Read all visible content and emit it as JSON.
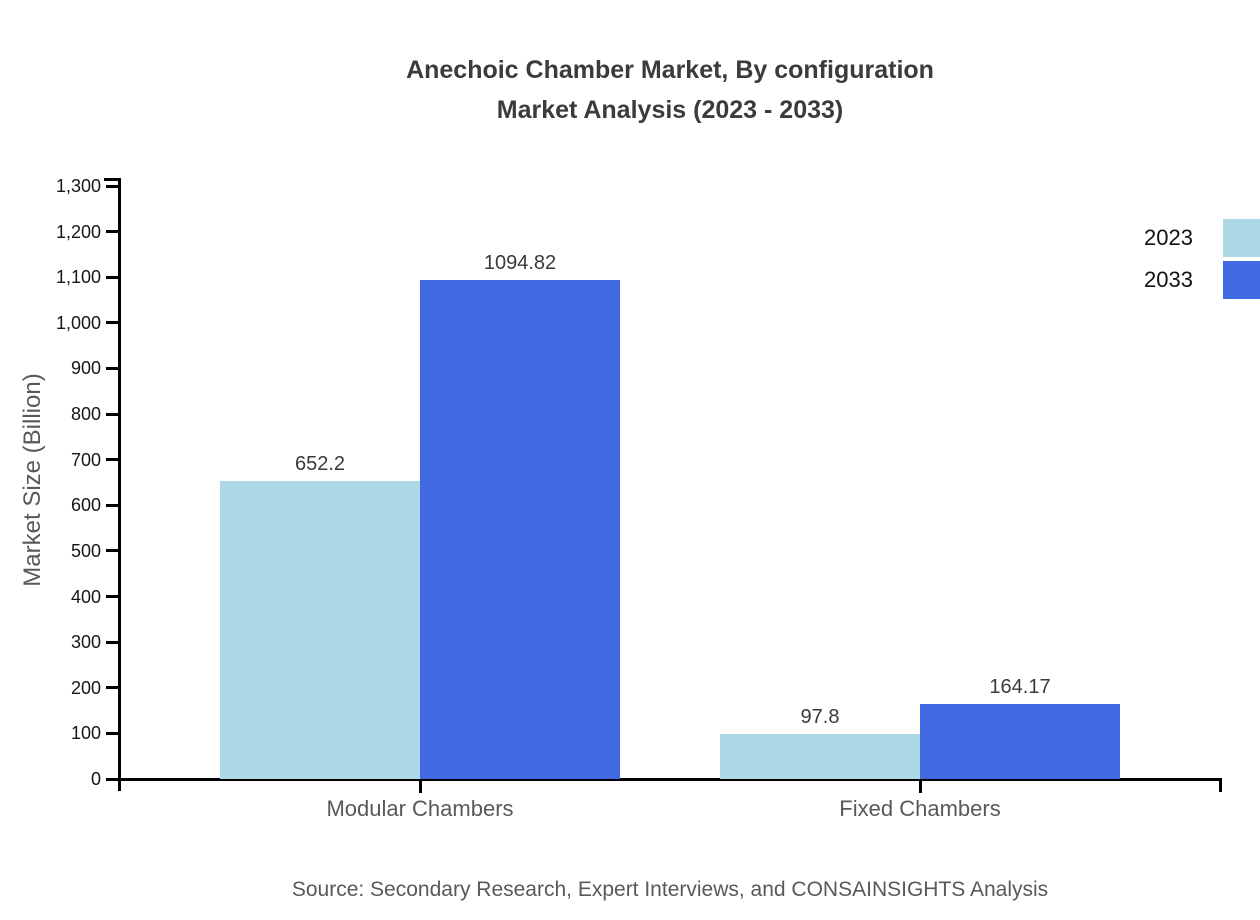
{
  "chart": {
    "title_line1": "Anechoic Chamber Market, By configuration",
    "title_line2": "Market Analysis (2023 - 2033)",
    "ylabel": "Market Size (Billion)",
    "source": "Source: Secondary Research, Expert Interviews, and CONSAINSIGHTS Analysis"
  },
  "chart_data": {
    "type": "bar",
    "title": "Anechoic Chamber Market, By configuration Market Analysis (2023 - 2033)",
    "categories": [
      "Modular Chambers",
      "Fixed Chambers"
    ],
    "series": [
      {
        "name": "2023",
        "color": "#ADD8E6",
        "values": [
          652.2,
          97.8
        ],
        "labels": [
          "652.2",
          "97.8"
        ]
      },
      {
        "name": "2033",
        "color": "#4169E1",
        "values": [
          1094.82,
          164.17
        ],
        "labels": [
          "1094.82",
          "164.17"
        ]
      }
    ],
    "xlabel": "",
    "ylabel": "Market Size (Billion)",
    "ylim": [
      0,
      1300
    ],
    "ytick_step": 100,
    "ytick_labels": [
      "0",
      "100",
      "200",
      "300",
      "400",
      "500",
      "600",
      "700",
      "800",
      "900",
      "1,000",
      "1,100",
      "1,200",
      "1,300"
    ],
    "grid": false,
    "legend_position": "top-right",
    "axis_color": "#000000",
    "text_colors": {
      "title": "#3b3b3b",
      "tick_labels": "#16161a",
      "category_labels": "#58595b",
      "value_labels": "#3a3a3a",
      "source": "#58595b"
    }
  }
}
